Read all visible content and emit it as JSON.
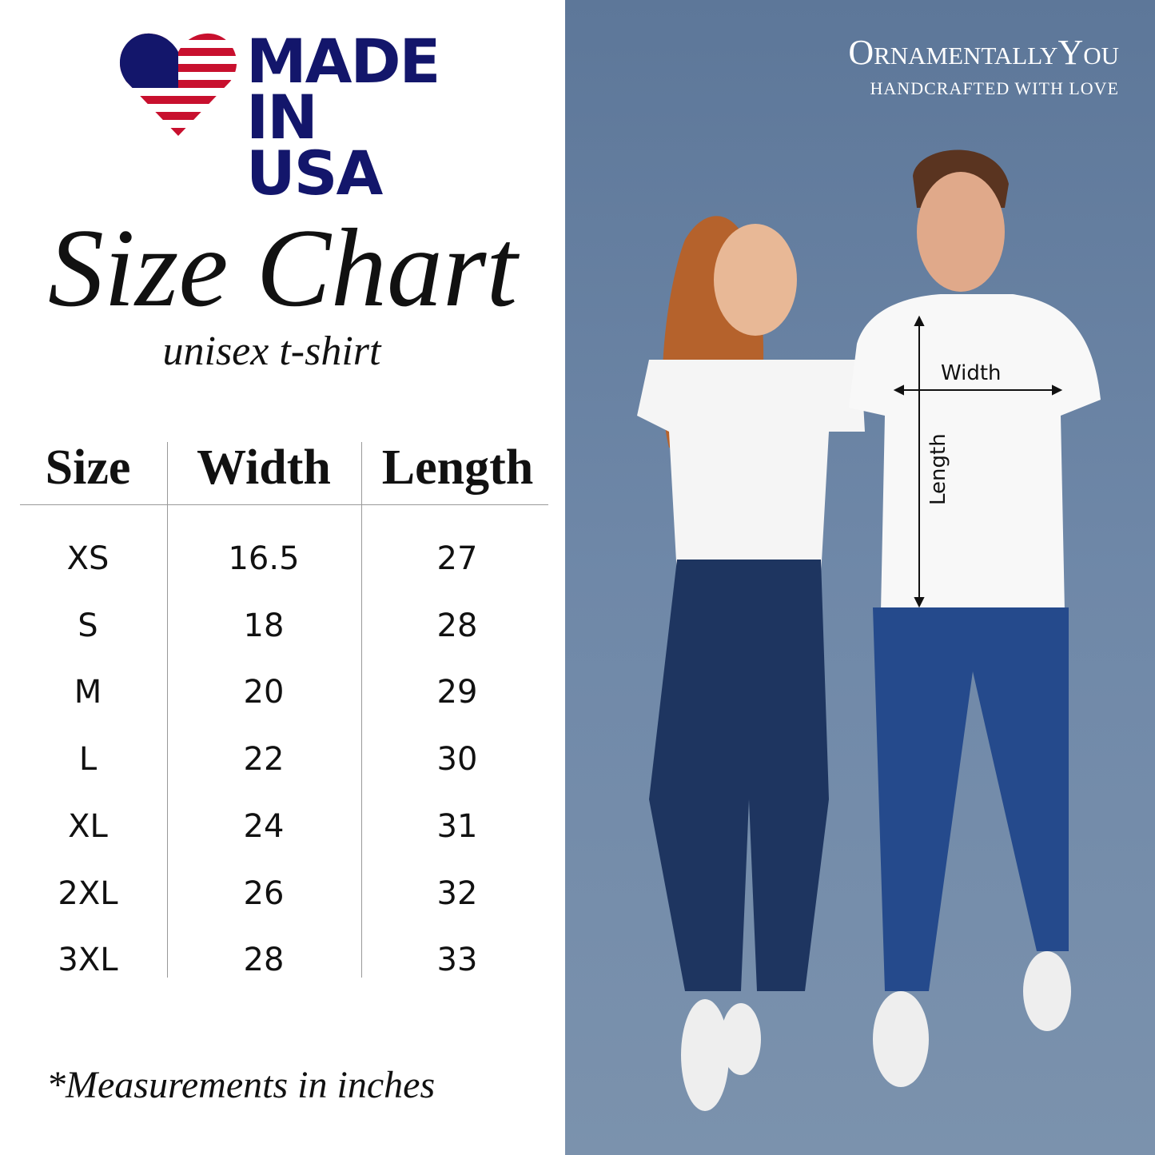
{
  "logo": {
    "line1": "MADE",
    "line2": "IN USA",
    "colors": {
      "navy": "#13166b",
      "red": "#c8102e"
    }
  },
  "title": "Size Chart",
  "subtitle": "unisex t-shirt",
  "table": {
    "headers": [
      "Size",
      "Width",
      "Length"
    ],
    "rows": [
      [
        "XS",
        "16.5",
        "27"
      ],
      [
        "S",
        "18",
        "28"
      ],
      [
        "M",
        "20",
        "29"
      ],
      [
        "L",
        "22",
        "30"
      ],
      [
        "XL",
        "24",
        "31"
      ],
      [
        "2XL",
        "26",
        "32"
      ],
      [
        "3XL",
        "28",
        "33"
      ]
    ]
  },
  "footnote": "*Measurements in inches",
  "brand": {
    "name": "OrnamentallyYou",
    "tagline": "HANDCRAFTED WITH LOVE"
  },
  "annotations": {
    "width": "Width",
    "length": "Length"
  }
}
